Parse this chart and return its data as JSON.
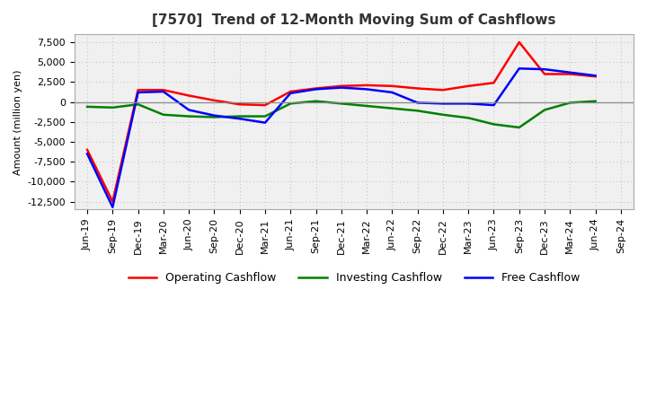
{
  "title": "[7570]  Trend of 12-Month Moving Sum of Cashflows",
  "ylabel": "Amount (million yen)",
  "x_labels": [
    "Jun-19",
    "Sep-19",
    "Dec-19",
    "Mar-20",
    "Jun-20",
    "Sep-20",
    "Dec-20",
    "Mar-21",
    "Jun-21",
    "Sep-21",
    "Dec-21",
    "Mar-22",
    "Jun-22",
    "Sep-22",
    "Dec-22",
    "Mar-23",
    "Jun-23",
    "Sep-23",
    "Dec-23",
    "Mar-24",
    "Jun-24",
    "Sep-24"
  ],
  "operating": [
    -6000,
    -12500,
    1500,
    1500,
    800,
    200,
    -300,
    -400,
    1300,
    1700,
    2000,
    2100,
    2000,
    1700,
    1500,
    2000,
    2400,
    7500,
    3500,
    3500,
    3200,
    null
  ],
  "investing": [
    -600,
    -700,
    -300,
    -1600,
    -1800,
    -1900,
    -1800,
    -1800,
    -200,
    100,
    -200,
    -500,
    -800,
    -1100,
    -1600,
    -2000,
    -2800,
    -3200,
    -1000,
    -100,
    100,
    null
  ],
  "free": [
    -6500,
    -13200,
    1200,
    1300,
    -1000,
    -1700,
    -2100,
    -2600,
    1100,
    1600,
    1800,
    1600,
    1200,
    -100,
    -200,
    -200,
    -400,
    4200,
    4100,
    3700,
    3300,
    null
  ],
  "operating_color": "#FF0000",
  "investing_color": "#008000",
  "free_color": "#0000FF",
  "background_color": "#FFFFFF",
  "plot_bg_color": "#F0F0F0",
  "grid_color": "#BBBBBB",
  "ylim": [
    -13500,
    8500
  ],
  "yticks": [
    -12500,
    -10000,
    -7500,
    -5000,
    -2500,
    0,
    2500,
    5000,
    7500
  ],
  "title_fontsize": 11,
  "axis_fontsize": 8,
  "legend_fontsize": 9,
  "linewidth": 1.8
}
